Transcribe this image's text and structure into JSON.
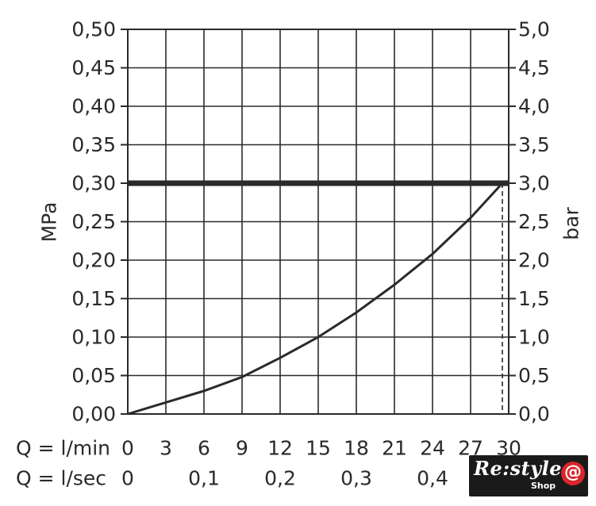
{
  "chart_data": {
    "type": "line",
    "ylabel": "MPa",
    "y2label": "bar",
    "ylim": [
      0,
      0.5
    ],
    "y2lim": [
      0,
      5.0
    ],
    "yticks": [
      "0,00",
      "0,05",
      "0,10",
      "0,15",
      "0,20",
      "0,25",
      "0,30",
      "0,35",
      "0,40",
      "0,45",
      "0,50"
    ],
    "y2ticks": [
      "0,0",
      "0,5",
      "1,0",
      "1,5",
      "2,0",
      "2,5",
      "3,0",
      "3,5",
      "4,0",
      "4,5",
      "5,0"
    ],
    "x_rows": [
      {
        "label": "Q = l/min",
        "ticks": [
          "0",
          "3",
          "6",
          "9",
          "12",
          "15",
          "18",
          "21",
          "24",
          "27",
          "30"
        ]
      },
      {
        "label": "Q = l/sec",
        "ticks": [
          "0",
          "0,1",
          "0,2",
          "0,3",
          "0,4"
        ]
      }
    ],
    "xlim": [
      0,
      30
    ],
    "grid": true,
    "series": [
      {
        "x": [
          0,
          3,
          6,
          9,
          12,
          15,
          18,
          21,
          24,
          27,
          29.5
        ],
        "values": [
          0,
          0.015,
          0.03,
          0.048,
          0.073,
          0.1,
          0.132,
          0.168,
          0.208,
          0.255,
          0.3
        ]
      }
    ],
    "reference_lines": [
      {
        "axis": "y",
        "value": 0.3
      }
    ],
    "vertical_marker": {
      "x": 29.5
    }
  },
  "logo": {
    "text": "Re:style",
    "sub": "Shop",
    "symbol": "@"
  }
}
